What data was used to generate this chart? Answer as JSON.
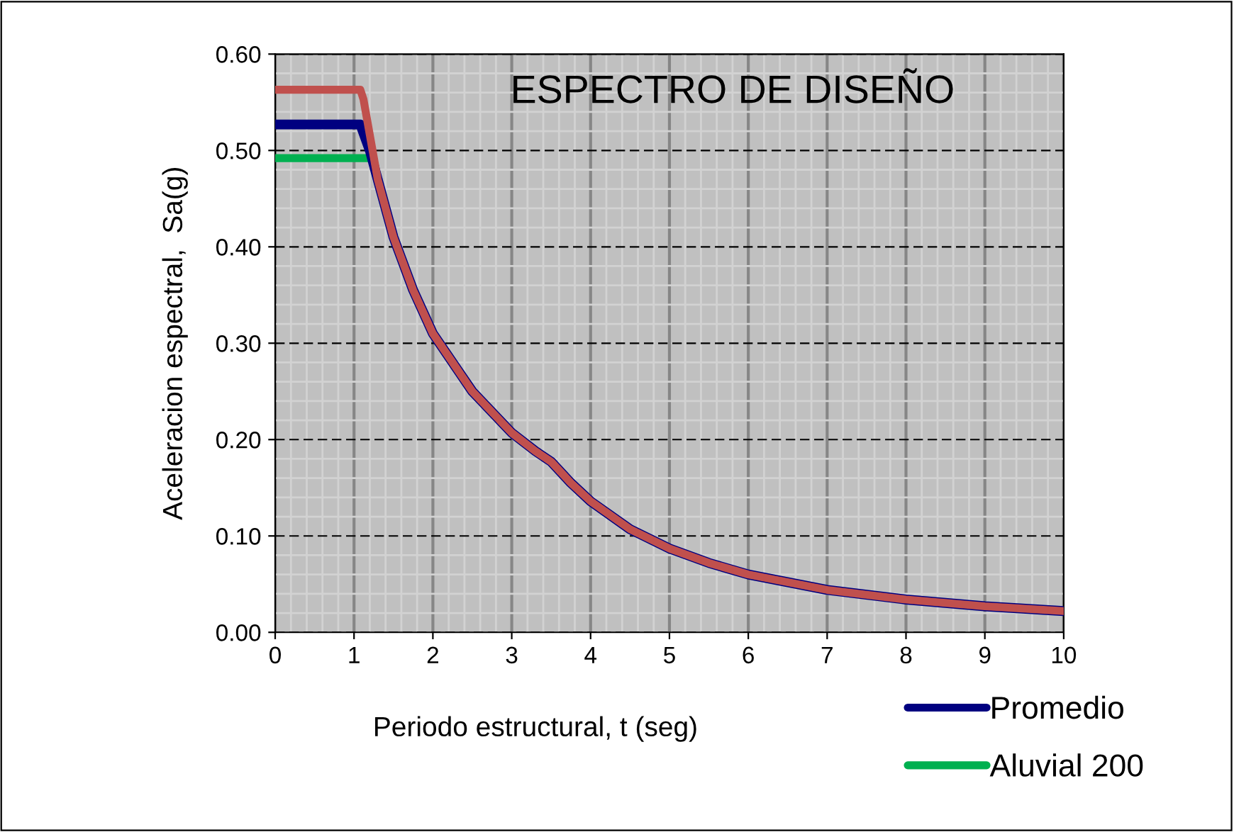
{
  "chart_data": {
    "type": "line",
    "title": "ESPECTRO DE DISEÑO",
    "xlabel": "Periodo estructural, t (seg)",
    "ylabel": "Aceleracion espectral,  Sa(g)",
    "xlim": [
      0,
      10
    ],
    "ylim": [
      0,
      0.6
    ],
    "xticks": [
      0,
      1,
      2,
      3,
      4,
      5,
      6,
      7,
      8,
      9,
      10
    ],
    "yticks": [
      {
        "value": 0,
        "label": "0.00"
      },
      {
        "value": 0.1,
        "label": "0.10"
      },
      {
        "value": 0.2,
        "label": "0.20"
      },
      {
        "value": 0.3,
        "label": "0.30"
      },
      {
        "value": 0.4,
        "label": "0.40"
      },
      {
        "value": 0.5,
        "label": "0.50"
      },
      {
        "value": 0.6,
        "label": "0.60"
      }
    ],
    "grid": true,
    "legend": "bottom right",
    "marker": "none",
    "line_style": "solid",
    "series": [
      {
        "name": "Aluvial 200",
        "color": "#00b050",
        "x": [
          0,
          1.2,
          1.25
        ],
        "values": [
          0.492,
          0.492,
          0.49
        ]
      },
      {
        "name": "Promedio",
        "color": "#000080",
        "x": [
          0,
          1.08,
          1.2,
          1.3,
          1.5,
          1.75,
          2,
          2.5,
          3,
          3.3,
          3.5,
          3.75,
          4,
          4.5,
          5,
          5.5,
          6,
          7,
          8,
          9,
          10
        ],
        "values": [
          0.527,
          0.527,
          0.5,
          0.47,
          0.41,
          0.355,
          0.31,
          0.25,
          0.207,
          0.188,
          0.177,
          0.155,
          0.136,
          0.107,
          0.087,
          0.072,
          0.06,
          0.044,
          0.034,
          0.027,
          0.022
        ]
      },
      {
        "color": "#c0504d",
        "x": [
          0,
          1.08,
          1.12,
          1.3,
          1.5,
          1.75,
          2,
          2.5,
          3,
          3.3,
          3.5,
          3.75,
          4,
          4.5,
          5,
          5.5,
          6,
          7,
          8,
          9,
          10
        ],
        "values": [
          0.563,
          0.563,
          0.553,
          0.47,
          0.41,
          0.355,
          0.31,
          0.25,
          0.207,
          0.188,
          0.177,
          0.155,
          0.136,
          0.107,
          0.087,
          0.072,
          0.06,
          0.044,
          0.034,
          0.027,
          0.022
        ]
      }
    ]
  }
}
